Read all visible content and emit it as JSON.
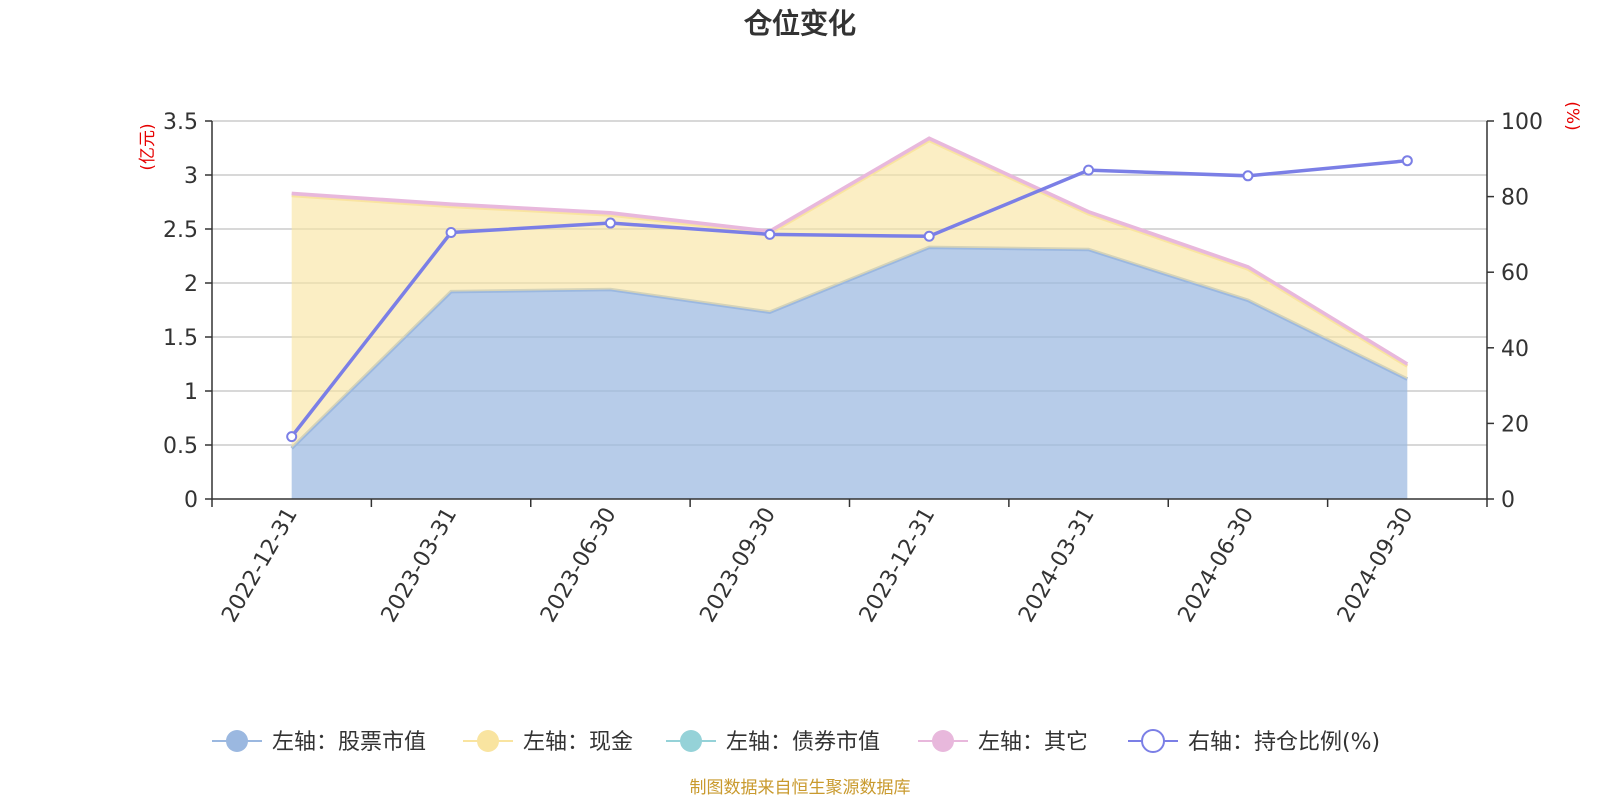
{
  "chart_data": {
    "type": "area",
    "title": "仓位变化",
    "left_unit": "(亿元)",
    "right_unit": "(%)",
    "categories": [
      "2022-12-31",
      "2023-03-31",
      "2023-06-30",
      "2023-09-30",
      "2023-12-31",
      "2024-03-31",
      "2024-06-30",
      "2024-09-30"
    ],
    "left_axis": {
      "min": 0,
      "max": 3.5,
      "ticks": [
        "0",
        "0.5",
        "1",
        "1.5",
        "2",
        "2.5",
        "3",
        "3.5"
      ]
    },
    "right_axis": {
      "min": 0,
      "max": 100,
      "ticks": [
        "0",
        "20",
        "40",
        "60",
        "80",
        "100"
      ]
    },
    "stacked": true,
    "grid": true,
    "legend_position": "bottom",
    "series": [
      {
        "name": "左轴：股票市值",
        "axis": "left",
        "color": "#9bb8e0",
        "values": [
          0.47,
          1.92,
          1.94,
          1.73,
          2.33,
          2.31,
          1.84,
          1.11
        ]
      },
      {
        "name": "左轴：现金",
        "axis": "left",
        "color": "#f9e4a0",
        "values": [
          2.34,
          0.79,
          0.69,
          0.73,
          0.99,
          0.33,
          0.29,
          0.12
        ]
      },
      {
        "name": "左轴：债券市值",
        "axis": "left",
        "color": "#95d2d8",
        "values": [
          0,
          0,
          0,
          0,
          0,
          0,
          0,
          0
        ]
      },
      {
        "name": "左轴：其它",
        "axis": "left",
        "color": "#e8b8dc",
        "values": [
          0.02,
          0.02,
          0.02,
          0.02,
          0.02,
          0.02,
          0.02,
          0.02
        ]
      },
      {
        "name": "右轴：持仓比例(%)",
        "axis": "right",
        "color": "#7b7fe6",
        "values": [
          16.5,
          70.5,
          73,
          70,
          69.5,
          87,
          85.5,
          89.5
        ]
      }
    ]
  },
  "footer": "制图数据来自恒生聚源数据库"
}
